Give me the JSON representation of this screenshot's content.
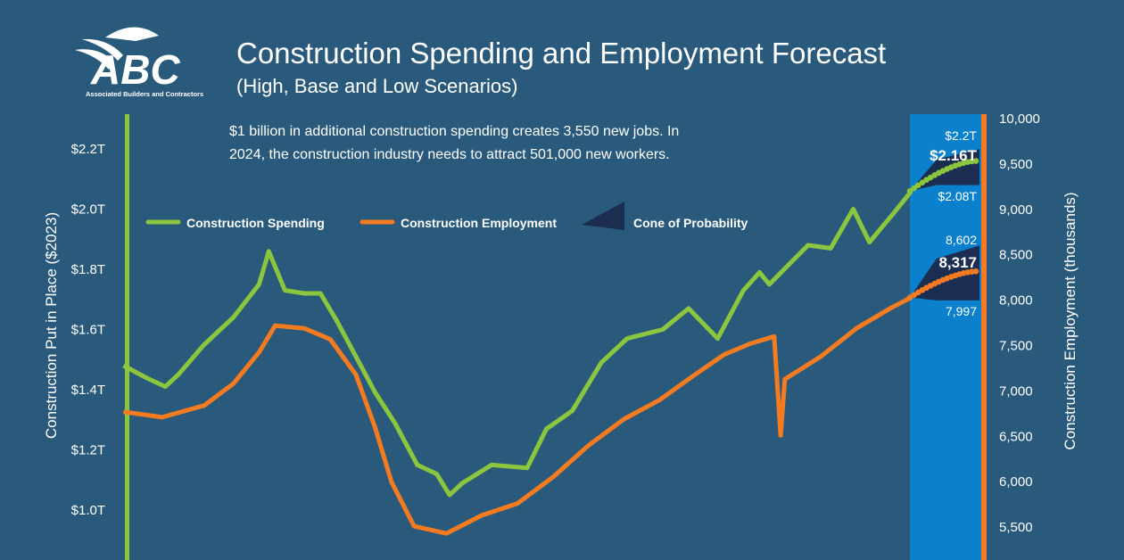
{
  "header": {
    "logo_text": "ABC",
    "logo_subtext": "Associated Builders and Contractors",
    "title": "Construction Spending and Employment Forecast",
    "subtitle": "(High, Base and Low Scenarios)",
    "note_line1": "$1 billion in additional construction spending creates 3,550 new jobs. In",
    "note_line2": "2024, the construction industry needs to attract 501,000 new workers."
  },
  "colors": {
    "background": "#2a5a7b",
    "spending": "#8cc63f",
    "employment": "#f47b20",
    "cone": "#1c2d52",
    "forecast_band": "#0b80cc"
  },
  "chart_data": {
    "type": "line",
    "title": "Construction Spending and Employment Forecast",
    "subtitle": "(High, Base and Low Scenarios)",
    "ylabel_left": "Construction Put in Place ($2023)",
    "ylabel_right": "Construction Employment (thousands)",
    "ylim_left": [
      0.9,
      2.35
    ],
    "ylim_right": [
      5250,
      10000
    ],
    "yticks_left": [
      "$2.2T",
      "$2.0T",
      "$1.8T",
      "$1.6T",
      "$1.4T",
      "$1.2T",
      "$1.0T"
    ],
    "yticks_left_values": [
      2.2,
      2.0,
      1.8,
      1.6,
      1.4,
      1.2,
      1.0
    ],
    "yticks_right": [
      "10,000",
      "9,500",
      "9,000",
      "8,500",
      "8,000",
      "7,500",
      "7,000",
      "6,500",
      "6,000",
      "5,500"
    ],
    "yticks_right_values": [
      10000,
      9500,
      9000,
      8500,
      8000,
      7500,
      7000,
      6500,
      6000,
      5500
    ],
    "legend": [
      "Construction Spending",
      "Construction Employment",
      "Cone of Probability"
    ],
    "legend_position": "top-left",
    "grid": false,
    "series": [
      {
        "name": "Construction Spending",
        "axis": "left",
        "x": [
          1999.9,
          2000.6,
          2001.2,
          2001.6,
          2002.4,
          2003.3,
          2004.1,
          2004.4,
          2004.9,
          2005.5,
          2006.0,
          2006.5,
          2007.2,
          2007.7,
          2008.3,
          2009.0,
          2009.6,
          2010.0,
          2010.4,
          2011.3,
          2012.4,
          2013.0,
          2013.8,
          2014.7,
          2015.5,
          2016.6,
          2017.4,
          2018.3,
          2019.1,
          2019.6,
          2019.9,
          2021.1,
          2021.8,
          2022.5,
          2023.0,
          2023.7,
          2024.3
        ],
        "values": [
          1.48,
          1.44,
          1.41,
          1.45,
          1.55,
          1.64,
          1.75,
          1.86,
          1.73,
          1.72,
          1.72,
          1.63,
          1.49,
          1.39,
          1.29,
          1.15,
          1.12,
          1.05,
          1.09,
          1.15,
          1.14,
          1.27,
          1.33,
          1.49,
          1.57,
          1.6,
          1.67,
          1.57,
          1.73,
          1.79,
          1.75,
          1.88,
          1.87,
          2.0,
          1.89,
          1.98,
          2.06
        ]
      },
      {
        "name": "Construction Employment",
        "axis": "right",
        "x": [
          1999.9,
          2001.1,
          2002.4,
          2003.3,
          2004.1,
          2004.6,
          2005.5,
          2006.3,
          2007.1,
          2007.7,
          2008.2,
          2008.9,
          2009.9,
          2011.0,
          2012.1,
          2013.2,
          2014.3,
          2015.4,
          2016.5,
          2017.6,
          2018.5,
          2019.3,
          2020.05,
          2020.25,
          2020.38,
          2021.5,
          2022.6,
          2023.7,
          2024.3
        ],
        "values": [
          6770,
          6710,
          6840,
          7080,
          7425,
          7720,
          7690,
          7570,
          7180,
          6590,
          6000,
          5510,
          5430,
          5630,
          5760,
          6050,
          6400,
          6690,
          6900,
          7180,
          7400,
          7520,
          7600,
          6510,
          7130,
          7380,
          7690,
          7920,
          8030
        ]
      }
    ],
    "forecast": {
      "spending": {
        "start": 2.06,
        "base": "$2.16T",
        "base_value": 2.16,
        "high": "$2.2T",
        "high_value": 2.2,
        "low": "$2.08T",
        "low_value": 2.08
      },
      "employment": {
        "start": 8030,
        "base": "8,317",
        "base_value": 8317,
        "high": "8,602",
        "high_value": 8602,
        "low": "7,997",
        "low_value": 7997
      }
    }
  }
}
